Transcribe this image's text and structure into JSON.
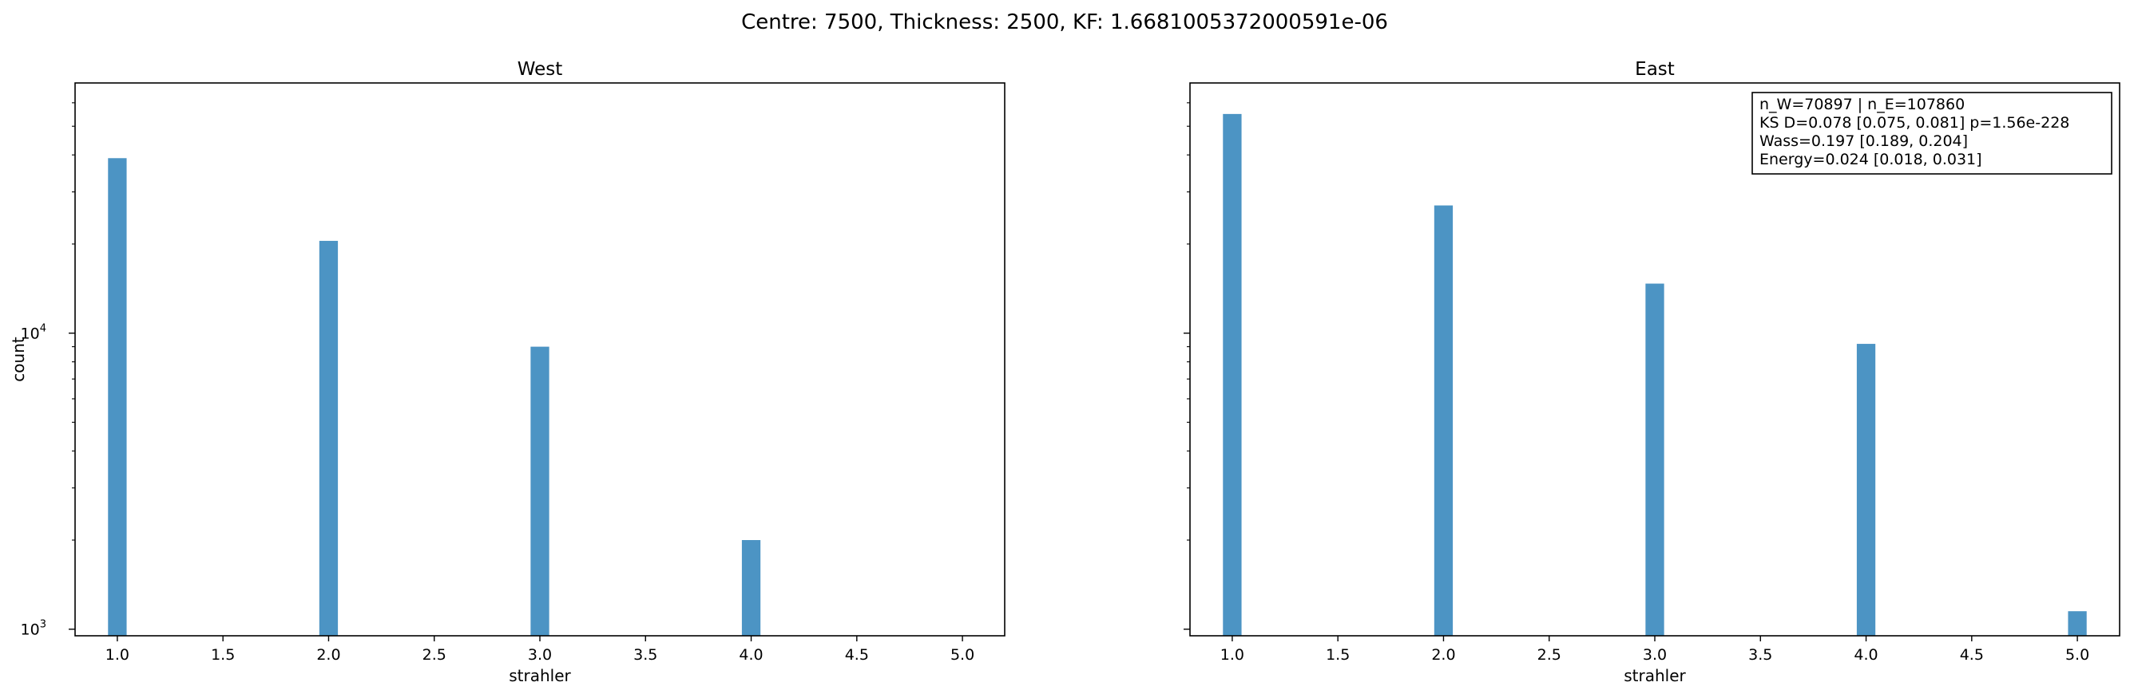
{
  "figure_title": "Centre: 7500, Thickness: 2500, KF: 1.6681005372000591e-06",
  "colors": {
    "bar": "#4c94c4",
    "axes": "#000000",
    "background": "#ffffff"
  },
  "chart_data": [
    {
      "type": "bar",
      "title": "West",
      "xlabel": "strahler",
      "ylabel": "count",
      "y_scale": "log",
      "ylim": [
        950,
        70000
      ],
      "xlim": [
        0.8,
        5.2
      ],
      "xticks": [
        "1.0",
        "1.5",
        "2.0",
        "2.5",
        "3.0",
        "3.5",
        "4.0",
        "4.5",
        "5.0"
      ],
      "yticks": [
        {
          "value": 1000,
          "base": "10",
          "exp": "3"
        },
        {
          "value": 10000,
          "base": "10",
          "exp": "4"
        }
      ],
      "bars": [
        {
          "x": 1.0,
          "value": 39000
        },
        {
          "x": 2.0,
          "value": 20500
        },
        {
          "x": 3.0,
          "value": 9000
        },
        {
          "x": 4.0,
          "value": 2000
        }
      ],
      "grid": false
    },
    {
      "type": "bar",
      "title": "East",
      "xlabel": "strahler",
      "ylabel": "",
      "y_scale": "log",
      "ylim": [
        950,
        70000
      ],
      "xlim": [
        0.8,
        5.2
      ],
      "xticks": [
        "1.0",
        "1.5",
        "2.0",
        "2.5",
        "3.0",
        "3.5",
        "4.0",
        "4.5",
        "5.0"
      ],
      "yticks": [],
      "bars": [
        {
          "x": 1.0,
          "value": 55000
        },
        {
          "x": 2.0,
          "value": 27000
        },
        {
          "x": 3.0,
          "value": 14700
        },
        {
          "x": 4.0,
          "value": 9200
        },
        {
          "x": 5.0,
          "value": 1150
        }
      ],
      "grid": false,
      "annotation": [
        "n_W=70897 | n_E=107860",
        "KS D=0.078 [0.075, 0.081]  p=1.56e-228",
        "Wass=0.197 [0.189, 0.204]",
        "Energy=0.024 [0.018, 0.031]"
      ],
      "annotation_placement": "top-right"
    }
  ]
}
